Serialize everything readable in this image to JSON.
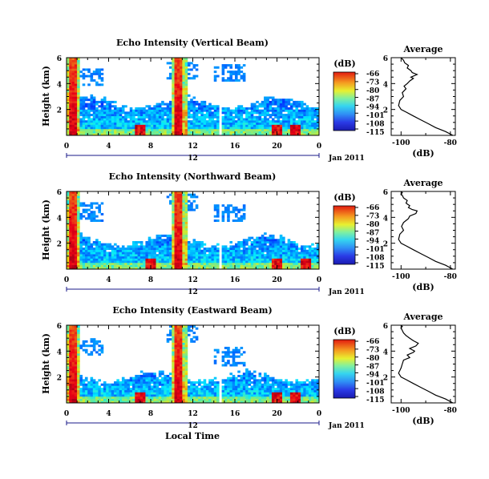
{
  "figure": {
    "date_label": "Jan 2011",
    "xlabel": "Local Time",
    "colorbar_unit": "(dB)",
    "avg_title": "Average",
    "avg_xlabel": "(dB)"
  },
  "chart_data": [
    {
      "type": "heatmap",
      "title": "Echo Intensity (Vertical Beam)",
      "ylabel": "Height (km)",
      "xticks": [
        "0",
        "4",
        "8",
        "12",
        "16",
        "20",
        "0"
      ],
      "day_label": "12",
      "yticks": [
        "2",
        "4",
        "6"
      ],
      "colorbar_ticks": [
        "-66",
        "-73",
        "-80",
        "-87",
        "-94",
        "-101",
        "-108",
        "-115"
      ],
      "x_range_hours": [
        0,
        24
      ],
      "y_range_km": [
        0,
        6
      ],
      "gap_hours": [
        14.5,
        14.8
      ],
      "hot_columns_hours": [
        0.6,
        10.7
      ],
      "surface_hot_spots_hours": [
        7.0,
        20.0,
        21.8
      ],
      "cloud_base_km": 2.5,
      "upper_patches": [
        [
          2.0,
          4.5
        ],
        [
          11.0,
          5.0
        ],
        [
          15.5,
          4.8
        ]
      ]
    },
    {
      "type": "heatmap",
      "title": "Echo Intensity (Northward Beam)",
      "ylabel": "Height (km)",
      "xticks": [
        "0",
        "4",
        "8",
        "12",
        "16",
        "20",
        "0"
      ],
      "day_label": "12",
      "yticks": [
        "2",
        "4",
        "6"
      ],
      "colorbar_ticks": [
        "-66",
        "-73",
        "-80",
        "-87",
        "-94",
        "-101",
        "-108",
        "-115"
      ],
      "x_range_hours": [
        0,
        24
      ],
      "y_range_km": [
        0,
        6
      ],
      "gap_hours": [
        14.5,
        14.8
      ],
      "hot_columns_hours": [
        0.6,
        10.7
      ],
      "surface_hot_spots_hours": [
        8.0,
        20.0,
        22.8
      ],
      "cloud_base_km": 2.2,
      "upper_patches": [
        [
          2.0,
          4.4
        ],
        [
          11.0,
          5.2
        ],
        [
          15.5,
          4.3
        ]
      ]
    },
    {
      "type": "heatmap",
      "title": "Echo Intensity (Eastward Beam)",
      "ylabel": "Height (km)",
      "xticks": [
        "0",
        "4",
        "8",
        "12",
        "16",
        "20",
        "0"
      ],
      "day_label": "12",
      "yticks": [
        "2",
        "4",
        "6"
      ],
      "colorbar_ticks": [
        "-66",
        "-73",
        "-80",
        "-87",
        "-94",
        "-101",
        "-108",
        "-115"
      ],
      "x_range_hours": [
        0,
        24
      ],
      "y_range_km": [
        0,
        6
      ],
      "gap_hours": [
        14.5,
        14.8
      ],
      "hot_columns_hours": [
        0.6,
        10.7
      ],
      "surface_hot_spots_hours": [
        7.0,
        20.0,
        21.8
      ],
      "cloud_base_km": 2.0,
      "upper_patches": [
        [
          2.0,
          4.3
        ],
        [
          11.0,
          5.3
        ],
        [
          15.5,
          3.6
        ]
      ]
    },
    {
      "type": "line",
      "title": "Average",
      "xlabel": "(dB)",
      "xticks": [
        "-100",
        "-80"
      ],
      "yticks": [
        "2",
        "4",
        "6"
      ],
      "xlim": [
        -104,
        -78
      ],
      "ylim": [
        0,
        6
      ],
      "x": [
        -79,
        -82,
        -86,
        -89,
        -92,
        -95,
        -98,
        -100,
        -101,
        -100.5,
        -99,
        -99.5,
        -98,
        -98.8,
        -97.5,
        -96.5,
        -95,
        -96,
        -93.5,
        -95.5,
        -96,
        -97.5,
        -97,
        -98.5,
        -99,
        -99.5,
        -100
      ],
      "y": [
        0.0,
        0.3,
        0.6,
        0.9,
        1.2,
        1.5,
        1.8,
        2.0,
        2.3,
        2.7,
        3.0,
        3.3,
        3.6,
        3.8,
        4.0,
        4.2,
        4.4,
        4.5,
        4.7,
        4.85,
        5.0,
        5.2,
        5.4,
        5.6,
        5.8,
        5.9,
        6.0
      ]
    },
    {
      "type": "line",
      "title": "Average",
      "xlabel": "(dB)",
      "xticks": [
        "-100",
        "-80"
      ],
      "yticks": [
        "2",
        "4",
        "6"
      ],
      "xlim": [
        -104,
        -78
      ],
      "ylim": [
        0,
        6
      ],
      "x": [
        -79,
        -82,
        -86,
        -89,
        -92,
        -95,
        -98,
        -100,
        -101,
        -100.5,
        -99,
        -99.8,
        -99,
        -97,
        -96.5,
        -94,
        -93.5,
        -95.5,
        -97,
        -96.5,
        -98,
        -97.5,
        -99,
        -99.5,
        -100,
        -99.5,
        -100
      ],
      "y": [
        0.0,
        0.3,
        0.6,
        0.9,
        1.2,
        1.5,
        1.8,
        2.0,
        2.3,
        2.7,
        3.0,
        3.3,
        3.6,
        3.9,
        4.1,
        4.3,
        4.5,
        4.6,
        4.75,
        4.9,
        5.1,
        5.3,
        5.5,
        5.7,
        5.8,
        5.9,
        6.0
      ]
    },
    {
      "type": "line",
      "title": "Average",
      "xlabel": "(dB)",
      "xticks": [
        "-100",
        "-80"
      ],
      "yticks": [
        "2",
        "4",
        "6"
      ],
      "xlim": [
        -104,
        -78
      ],
      "ylim": [
        0,
        6
      ],
      "x": [
        -79,
        -82,
        -86,
        -89,
        -92,
        -95,
        -98,
        -100,
        -101,
        -100,
        -99.5,
        -99,
        -96.5,
        -97.5,
        -95,
        -94.5,
        -96.5,
        -94,
        -93,
        -95,
        -96.5,
        -98,
        -99,
        -99.5,
        -100,
        -99.5,
        -100
      ],
      "y": [
        0.0,
        0.3,
        0.6,
        0.9,
        1.2,
        1.5,
        1.8,
        2.0,
        2.3,
        2.7,
        3.0,
        3.3,
        3.5,
        3.7,
        3.9,
        4.0,
        4.2,
        4.4,
        4.6,
        4.8,
        5.0,
        5.2,
        5.4,
        5.6,
        5.8,
        5.9,
        6.0
      ]
    }
  ]
}
